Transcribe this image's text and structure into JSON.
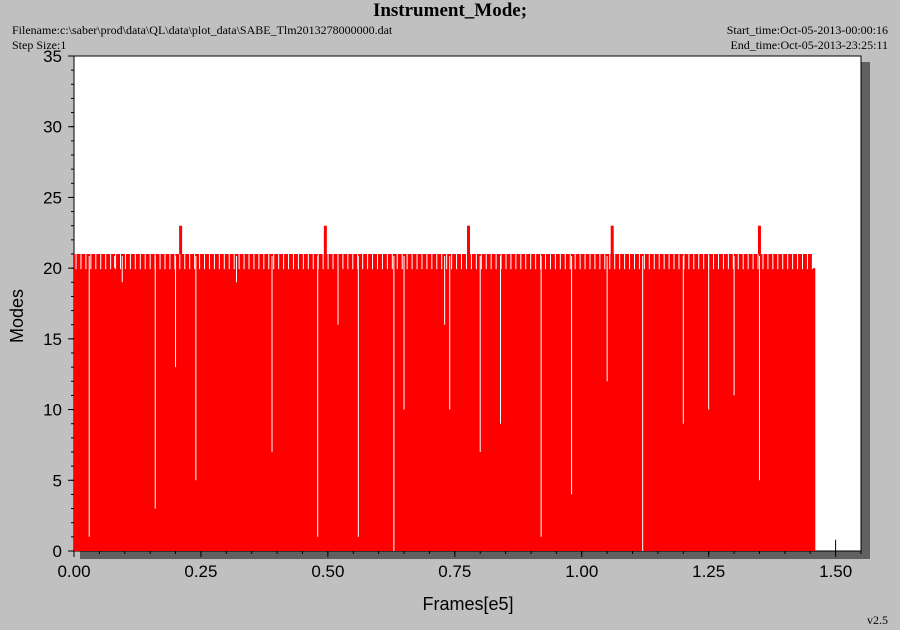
{
  "header": {
    "title": "Instrument_Mode;",
    "filename": "Filename:c:\\saber\\prod\\data\\QL\\data\\plot_data\\SABE_Tlm2013278000000.dat",
    "step_size": "Step Size:1",
    "start_time": "Start_time:Oct-05-2013-00:00:16",
    "end_time": "End_time:Oct-05-2013-23:25:11",
    "version": "v2.5"
  },
  "colors": {
    "series": "#ff0000",
    "background": "#c0c0c0",
    "plot_area": "#ffffff",
    "shadow": "#606060"
  },
  "chart_data": {
    "type": "line",
    "title": "Instrument_Mode;",
    "xlabel": "Frames[e5]",
    "ylabel": "Modes",
    "xlim": [
      0,
      1.55
    ],
    "ylim": [
      0,
      35
    ],
    "x_ticks": [
      "0.00",
      "0.25",
      "0.50",
      "0.75",
      "1.00",
      "1.25",
      "1.50"
    ],
    "y_ticks": [
      "0",
      "5",
      "10",
      "15",
      "20",
      "25",
      "30",
      "35"
    ],
    "grid": false,
    "legend": "none",
    "series": [
      {
        "color": "#ff0000",
        "description_levels": {
          "upper": 21,
          "lower": 20,
          "baseline": 0
        },
        "spikes_x": [
          0.21,
          0.495,
          0.777,
          1.06,
          1.35
        ],
        "spike_value": 23,
        "x_end": 1.46,
        "dips_x": [
          0.03,
          0.08,
          0.095,
          0.16,
          0.2,
          0.24,
          0.32,
          0.39,
          0.48,
          0.52,
          0.56,
          0.63,
          0.65,
          0.73,
          0.74,
          0.8,
          0.84,
          0.92,
          0.98,
          1.05,
          1.12,
          1.2,
          1.25,
          1.3,
          1.35
        ],
        "dip_values": [
          1,
          20,
          19,
          3,
          13,
          5,
          19,
          7,
          1,
          16,
          1,
          0,
          10,
          16,
          10,
          7,
          9,
          1,
          4,
          12,
          0,
          9,
          10,
          11,
          5
        ]
      }
    ]
  }
}
